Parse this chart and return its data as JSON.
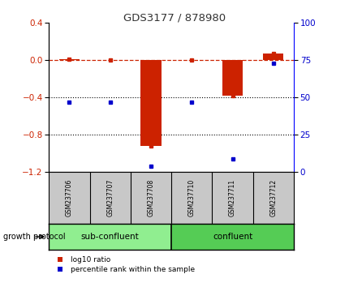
{
  "title": "GDS3177 / 878980",
  "samples": [
    "GSM237706",
    "GSM237707",
    "GSM237708",
    "GSM237710",
    "GSM237711",
    "GSM237712"
  ],
  "log10_ratio": [
    0.01,
    0.0,
    -0.92,
    0.0,
    -0.38,
    0.07
  ],
  "percentile_rank": [
    47,
    47,
    4,
    47,
    9,
    73
  ],
  "group1_label": "sub-confluent",
  "group1_count": 3,
  "group1_color": "#90EE90",
  "group2_label": "confluent",
  "group2_count": 3,
  "group2_color": "#55CC55",
  "group_protocol_label": "growth protocol",
  "ylim_left": [
    -1.2,
    0.4
  ],
  "ylim_right": [
    0,
    100
  ],
  "yticks_left": [
    0.4,
    0.0,
    -0.4,
    -0.8,
    -1.2
  ],
  "yticks_right": [
    100,
    75,
    50,
    25,
    0
  ],
  "dotted_lines": [
    -0.4,
    -0.8
  ],
  "bar_color": "#CC2200",
  "dot_color": "#0000CC",
  "bar_width": 0.5,
  "legend_log10": "log10 ratio",
  "legend_pct": "percentile rank within the sample",
  "background_color": "#ffffff",
  "plot_bg": "#ffffff",
  "title_color": "#CC2200",
  "label_bg": "#C8C8C8"
}
